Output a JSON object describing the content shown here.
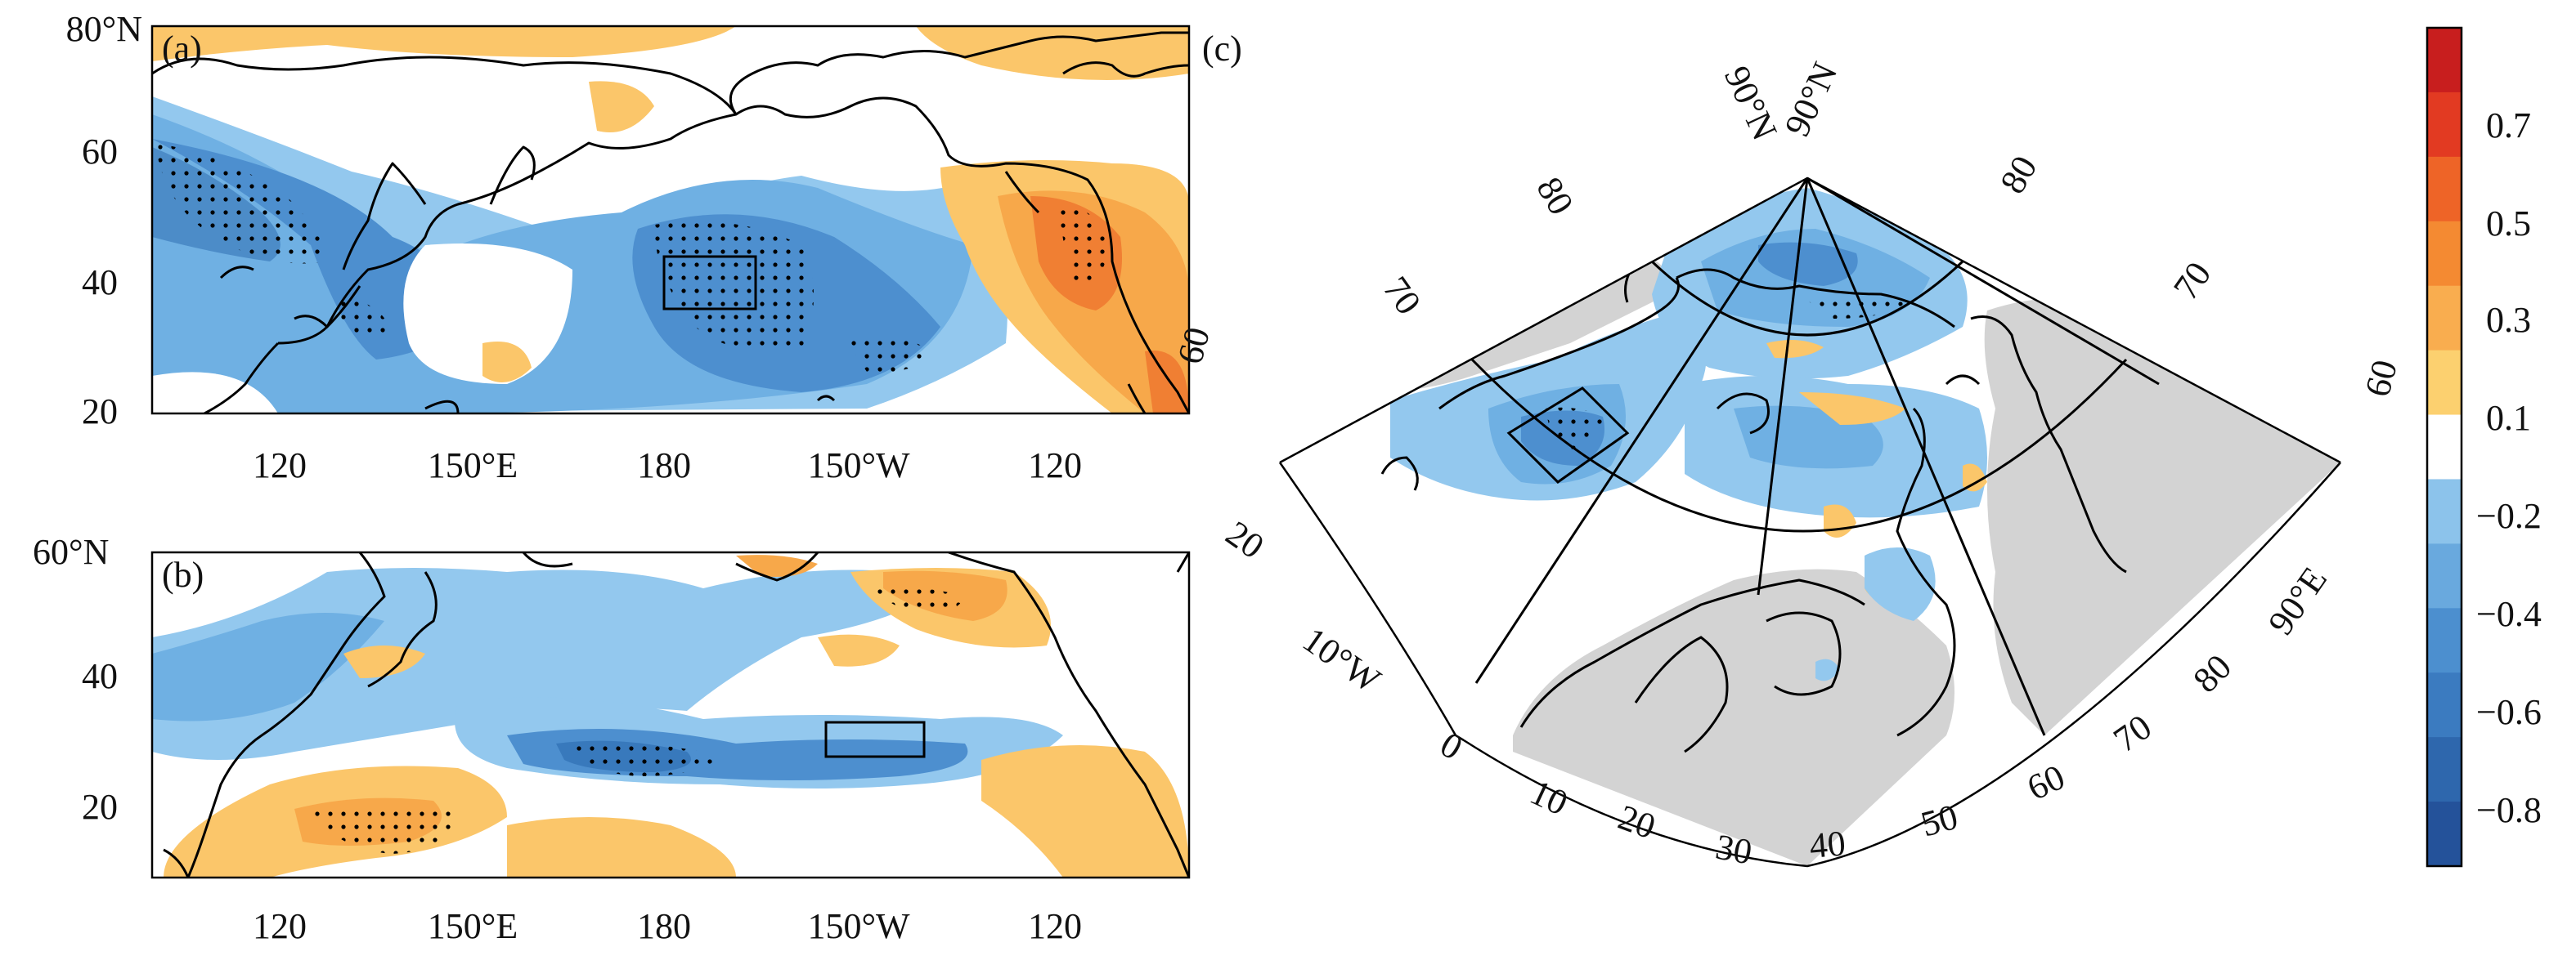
{
  "colors": {
    "neg_strong": "#2f6fb3",
    "neg_mid": "#4d8fcf",
    "neg_light": "#6fb0e3",
    "neg_faint": "#93c8ee",
    "pos_faint": "#fbc66a",
    "pos_light": "#f7a84a",
    "pos_mid": "#f07f33",
    "land_gray": "#d3d3d3",
    "coast": "#000000"
  },
  "panel_a": {
    "label": "(a)",
    "lat_ticks": [
      "80°N",
      "60",
      "40",
      "20"
    ],
    "lon_ticks": [
      "120",
      "150°E",
      "180",
      "150°W",
      "120"
    ]
  },
  "panel_b": {
    "label": "(b)",
    "lat_ticks": [
      "60°N",
      "40",
      "20"
    ],
    "lon_ticks": [
      "120",
      "150°E",
      "180",
      "150°W",
      "120"
    ]
  },
  "panel_c": {
    "label": "(c)",
    "pole_labels": [
      "90°N",
      "90°N"
    ],
    "lat_labels_left": [
      "80",
      "70",
      "60"
    ],
    "lat_labels_right": [
      "80",
      "70",
      "60"
    ],
    "lon_labels_left": [
      "20",
      "10°W"
    ],
    "lon_labels_bottom": [
      "0",
      "10",
      "20",
      "30",
      "40",
      "50",
      "60",
      "70",
      "80",
      "90°E"
    ]
  },
  "colorbar": {
    "tick_labels": [
      "0.7",
      "0.5",
      "0.3",
      "0.1",
      "−0.2",
      "−0.4",
      "−0.6",
      "−0.8"
    ],
    "colors": [
      "#c81e1e",
      "#e23a22",
      "#ee6427",
      "#f48a32",
      "#f9ad4f",
      "#fcd06f",
      "#ffffff",
      "#8cc3eb",
      "#69a9de",
      "#4c8fcf",
      "#3b7bc0",
      "#2e67ad",
      "#24529a"
    ]
  }
}
